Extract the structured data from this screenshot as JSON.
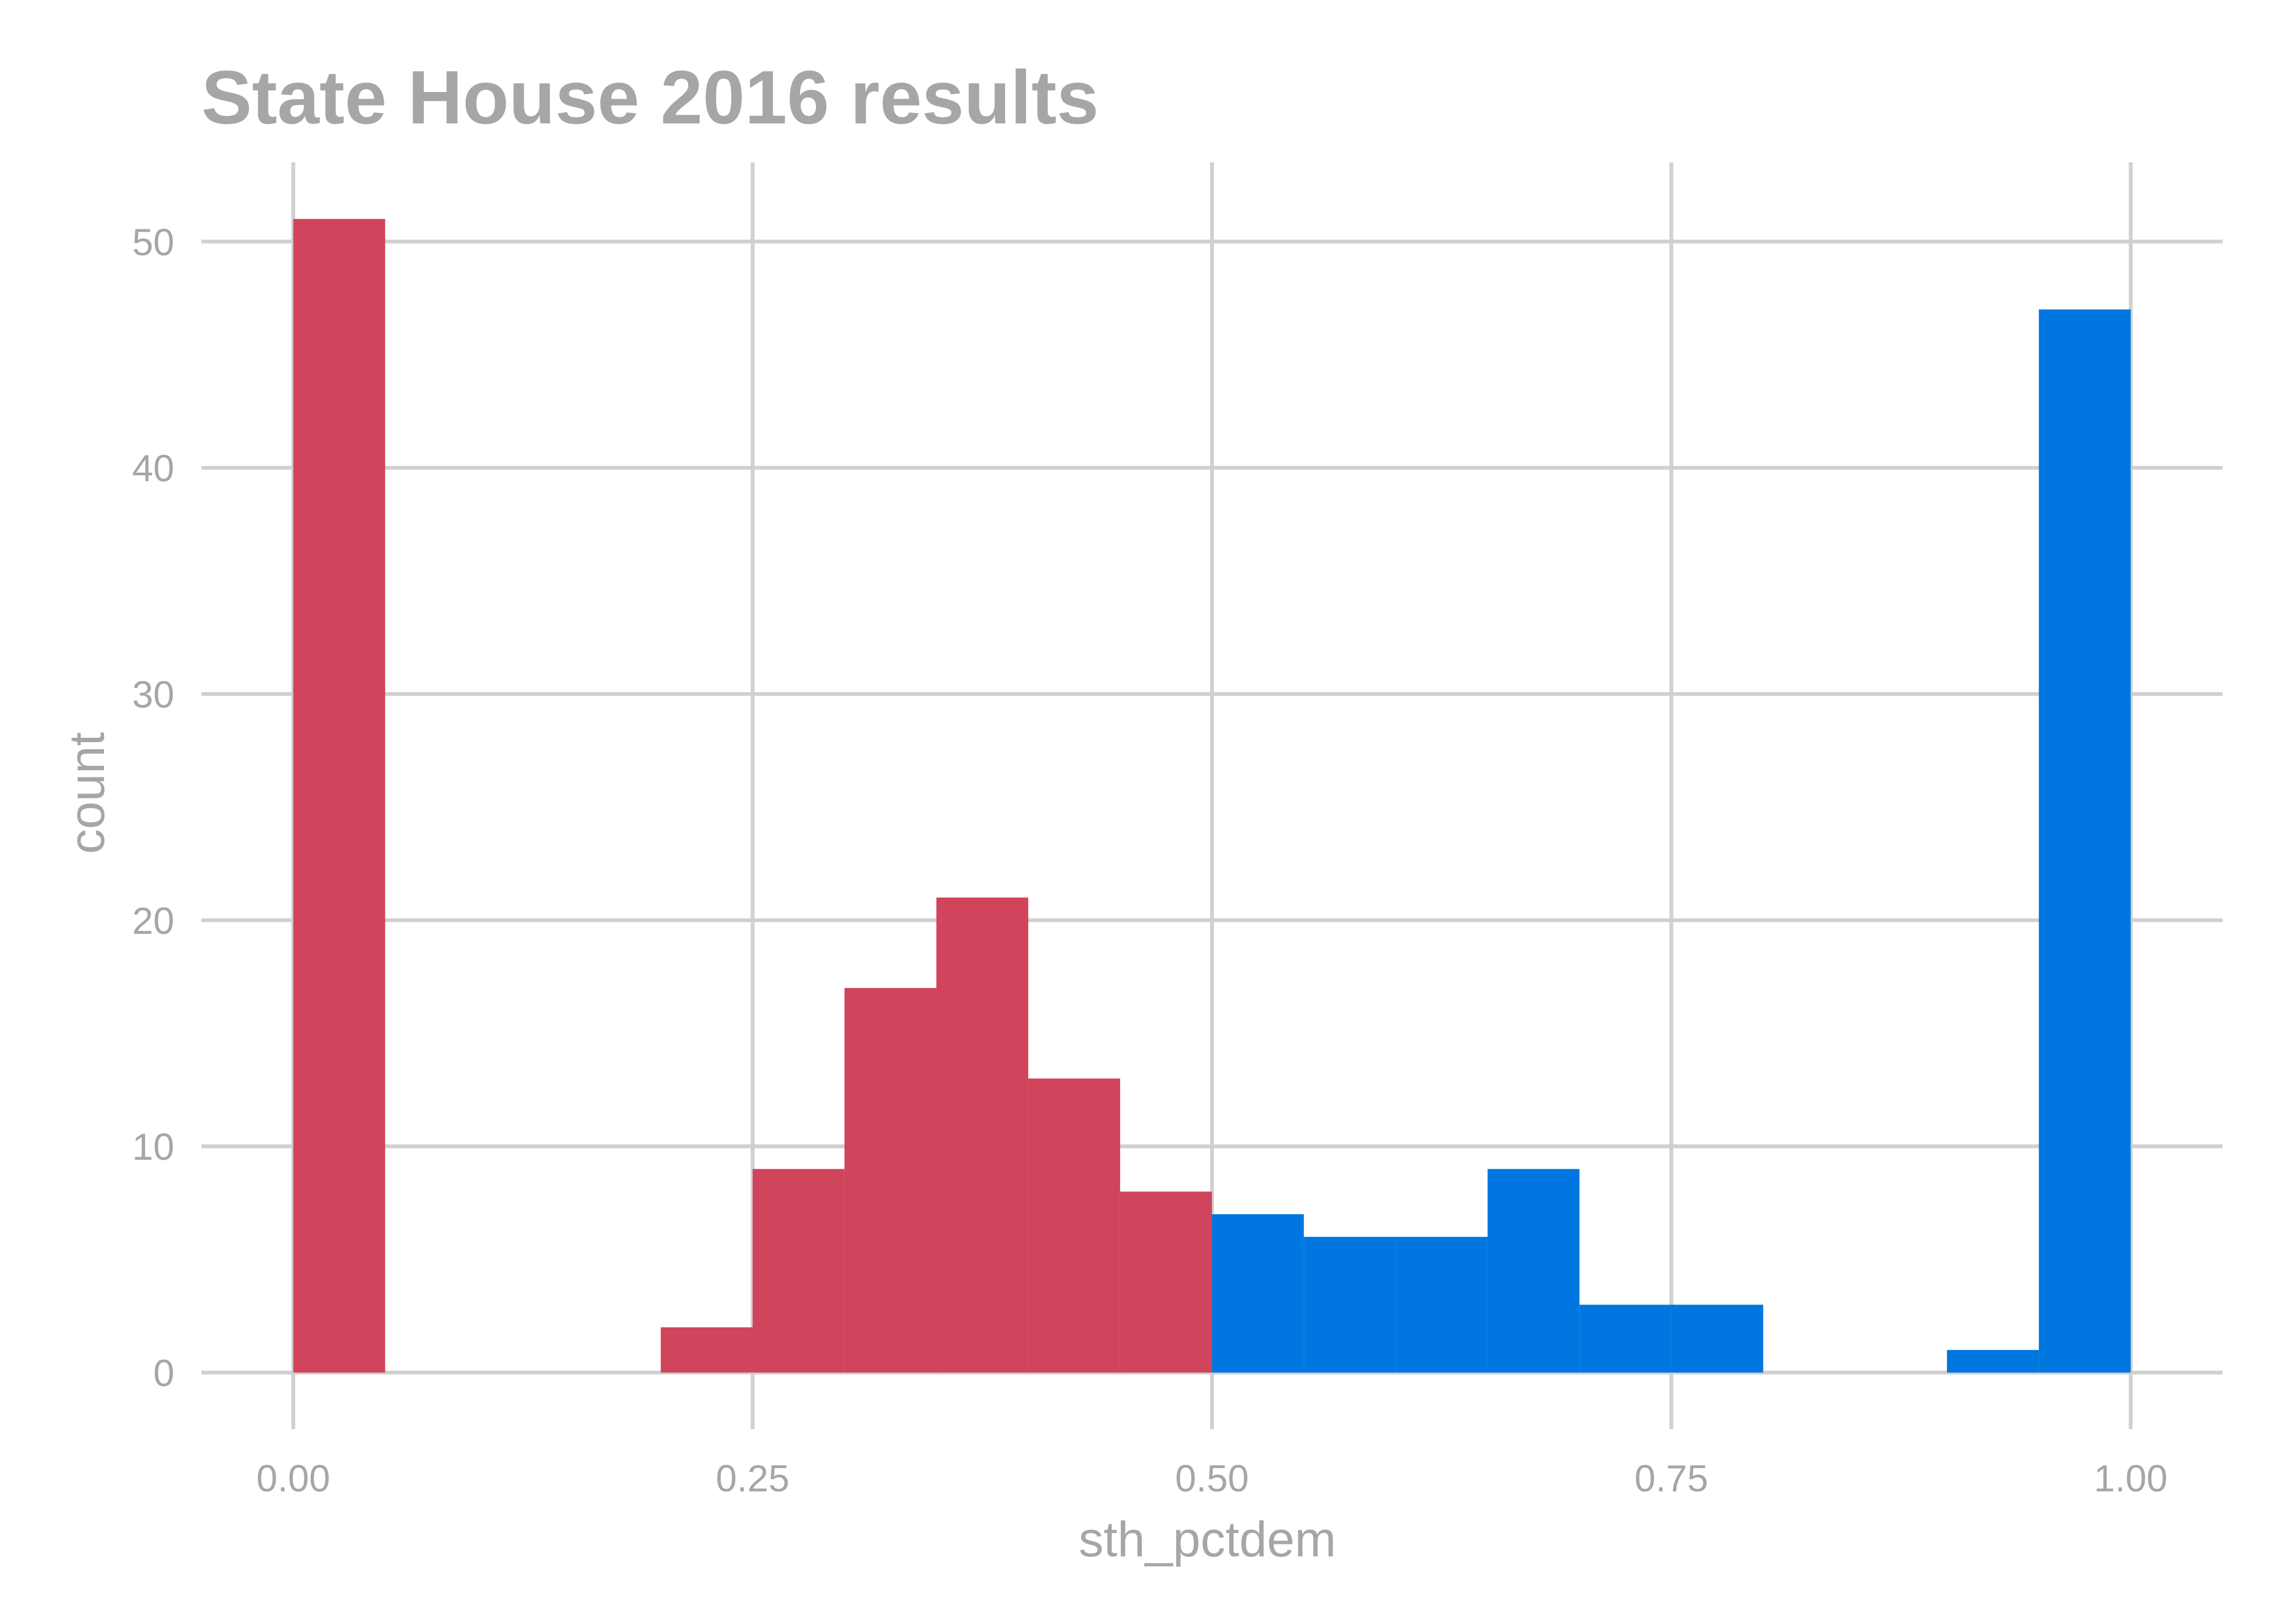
{
  "chart_data": {
    "type": "bar",
    "title": "State House 2016 results",
    "xlabel": "sth_pctdem",
    "ylabel": "count",
    "xlim": [
      -0.05,
      1.05
    ],
    "ylim": [
      -2.5,
      53.5
    ],
    "x_ticks": [
      0,
      0.25,
      0.5,
      0.75,
      1
    ],
    "x_tick_labels": [
      "0.00",
      "0.25",
      "0.50",
      "0.75",
      "1.00"
    ],
    "y_ticks": [
      0,
      10,
      20,
      30,
      40,
      50
    ],
    "y_tick_labels": [
      "0",
      "10",
      "20",
      "30",
      "40",
      "50"
    ],
    "grid": true,
    "colors": {
      "republican": "#d0445c",
      "democrat": "#0077e0",
      "grid": "#d0d0d0",
      "text": "#a6a6a6"
    },
    "series": [
      {
        "color": "#d0445c",
        "bins": [
          {
            "x0": 0.0,
            "x1": 0.05,
            "count": 51
          },
          {
            "x0": 0.2,
            "x1": 0.25,
            "count": 2
          },
          {
            "x0": 0.25,
            "x1": 0.3,
            "count": 9
          },
          {
            "x0": 0.3,
            "x1": 0.35,
            "count": 17
          },
          {
            "x0": 0.35,
            "x1": 0.4,
            "count": 21
          },
          {
            "x0": 0.4,
            "x1": 0.45,
            "count": 13
          },
          {
            "x0": 0.45,
            "x1": 0.5,
            "count": 8
          }
        ]
      },
      {
        "color": "#0077e0",
        "bins": [
          {
            "x0": 0.5,
            "x1": 0.55,
            "count": 7
          },
          {
            "x0": 0.55,
            "x1": 0.6,
            "count": 6
          },
          {
            "x0": 0.6,
            "x1": 0.65,
            "count": 6
          },
          {
            "x0": 0.65,
            "x1": 0.7,
            "count": 9
          },
          {
            "x0": 0.7,
            "x1": 0.75,
            "count": 3
          },
          {
            "x0": 0.75,
            "x1": 0.8,
            "count": 3
          },
          {
            "x0": 0.9,
            "x1": 0.95,
            "count": 1
          },
          {
            "x0": 0.95,
            "x1": 1.0,
            "count": 47
          }
        ]
      }
    ]
  }
}
